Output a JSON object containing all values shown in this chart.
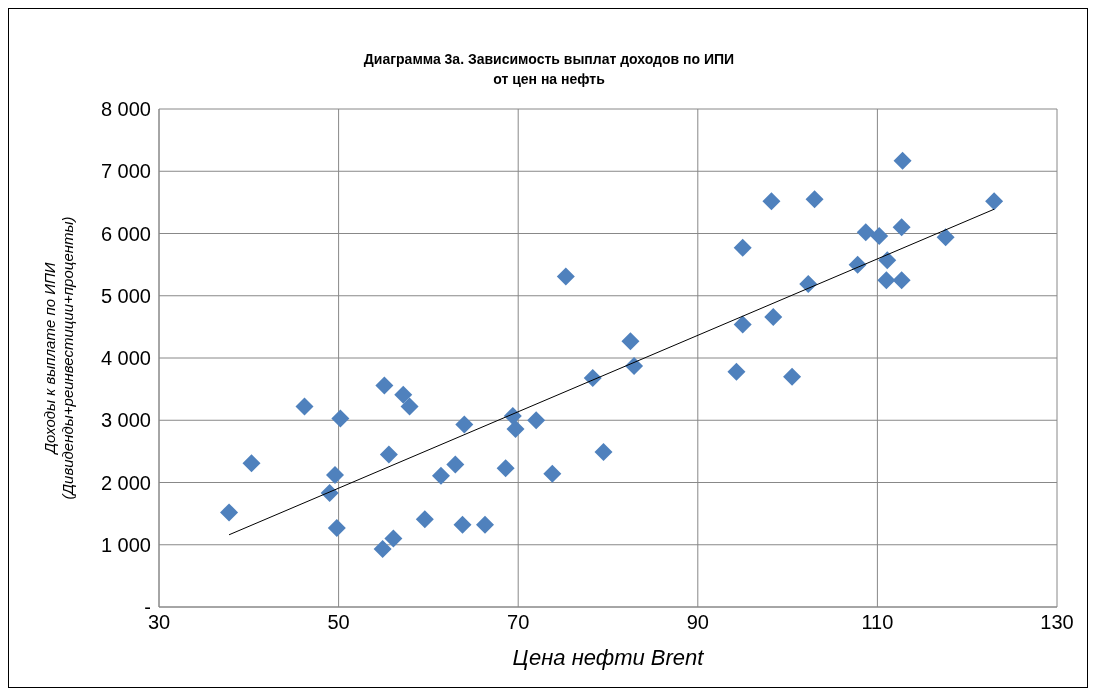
{
  "chart_data": {
    "type": "scatter",
    "title": "Диаграмма 3а. Зависимость выплат доходов по ИПИ\nот цен на нефть",
    "xlabel": "Цена нефти Brent",
    "ylabel": "Доходы к выплате по ИПИ\n(Дивиденды+реинвестиции+проценты)",
    "xlim": [
      30,
      130
    ],
    "xticks": [
      30,
      50,
      70,
      90,
      110,
      130
    ],
    "ylim": [
      0,
      8000
    ],
    "yticks": [
      {
        "value": 0,
        "label": "-"
      },
      {
        "value": 1000,
        "label": "1 000"
      },
      {
        "value": 2000,
        "label": "2 000"
      },
      {
        "value": 3000,
        "label": "3 000"
      },
      {
        "value": 4000,
        "label": "4 000"
      },
      {
        "value": 5000,
        "label": "5 000"
      },
      {
        "value": 6000,
        "label": "6 000"
      },
      {
        "value": 7000,
        "label": "7 000"
      },
      {
        "value": 8000,
        "label": "8 000"
      }
    ],
    "grid": true,
    "marker": "diamond",
    "series": [
      {
        "color": "#4f81bd",
        "x": [
          37.8,
          40.3,
          46.2,
          49.0,
          49.6,
          49.8,
          50.2,
          54.9,
          55.1,
          55.6,
          56.1,
          57.2,
          57.9,
          59.6,
          61.4,
          63.0,
          64.0,
          63.8,
          66.3,
          68.6,
          69.4,
          69.7,
          72.0,
          73.8,
          75.3,
          78.3,
          79.5,
          82.5,
          82.9,
          94.3,
          95.0,
          95.0,
          98.2,
          98.4,
          100.5,
          102.3,
          103.0,
          107.8,
          108.7,
          110.2,
          111.1,
          111.0,
          112.7,
          112.8,
          112.7,
          117.6,
          123.0
        ],
        "values": [
          1520,
          2310,
          3220,
          1830,
          2120,
          1270,
          3030,
          930,
          3560,
          2450,
          1100,
          3410,
          3220,
          1410,
          2110,
          2290,
          2930,
          1320,
          1320,
          2230,
          3070,
          2860,
          3000,
          2140,
          5310,
          3680,
          2490,
          4270,
          3870,
          3780,
          4540,
          5770,
          6520,
          4660,
          3700,
          5190,
          6550,
          5500,
          6020,
          5960,
          5570,
          5250,
          6100,
          7170,
          5250,
          5940,
          6520
        ]
      },
      {
        "type": "line",
        "marker": "none",
        "color": "#000000",
        "x": [
          37.8,
          123.0
        ],
        "values": [
          1160,
          6390
        ]
      }
    ]
  }
}
